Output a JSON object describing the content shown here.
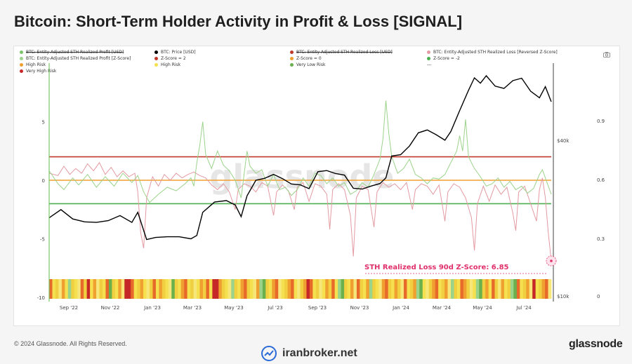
{
  "title": "Bitcoin: Short-Term Holder Activity in Profit & Loss [SIGNAL]",
  "footer": {
    "copyright": "© 2024 Glassnode. All Rights Reserved.",
    "brand": "glassnode",
    "site": "iranbroker.net"
  },
  "watermark": "glassnode",
  "annotation": "STH Realized Loss 90d Z-Score: 6.85",
  "legend": [
    {
      "label": "BTC: Entity-Adjusted STH Realized Profit [USD]",
      "color": "#7cc46a",
      "struck": true
    },
    {
      "label": "BTC: Price [USD]",
      "color": "#000000",
      "struck": false
    },
    {
      "label": "BTC: Entity-Adjusted STH Realized Loss [USD]",
      "color": "#c0392b",
      "struck": true
    },
    {
      "label": "BTC: Entity-Adjusted STH Realized Loss [Reversed Z-Score]",
      "color": "#e39aa2",
      "struck": false
    },
    {
      "label": "BTC: Entity-Adjusted STH Realized Profit [Z-Score]",
      "color": "#9cd38b",
      "struck": false
    },
    {
      "label": "Z-Score = 2",
      "color": "#c0392b",
      "struck": false
    },
    {
      "label": "Z-Score = 0",
      "color": "#f0a030",
      "struck": false
    },
    {
      "label": "Z-Score = -2",
      "color": "#4caf50",
      "struck": false
    },
    {
      "label": "High Risk",
      "color": "#f0a030",
      "struck": false
    },
    {
      "label": "High Risk",
      "color": "#f5e050",
      "struck": false
    },
    {
      "label": "Very Low Risk",
      "color": "#6ab04c",
      "struck": false
    },
    {
      "label": "---",
      "color": "",
      "struck": false
    },
    {
      "label": "Very High Risk",
      "color": "#c62828",
      "struck": false
    }
  ],
  "colors": {
    "price": "#000000",
    "profit_z": "#9cd38b",
    "loss_z": "#e39aa2",
    "z2": "#c0392b",
    "z0": "#f0a030",
    "zneg2": "#4caf50",
    "annotation": "#e0306a"
  },
  "chart_data": {
    "type": "line",
    "title": "Bitcoin: Short-Term Holder Activity in Profit & Loss [SIGNAL]",
    "x_ticks": [
      "Sep '22",
      "Nov '22",
      "Jan '23",
      "Mar '23",
      "May '23",
      "Jul '23",
      "Sep '23",
      "Nov '23",
      "Jan '24",
      "Mar '24",
      "May '24",
      "Jul '24"
    ],
    "y_left": {
      "ticks": [
        "5",
        "0",
        "-5",
        "-10"
      ],
      "range": [
        -10,
        10
      ]
    },
    "y_right_price": {
      "ticks": [
        "$40k",
        "$10k"
      ],
      "scale": "log"
    },
    "y_right_ratio": {
      "ticks": [
        "0.9",
        "0.6",
        "0.3",
        "0"
      ],
      "range": [
        0,
        1
      ]
    },
    "reference_lines": [
      {
        "name": "Z-Score = 2",
        "y": 2
      },
      {
        "name": "Z-Score = 0",
        "y": 0
      },
      {
        "name": "Z-Score = -2",
        "y": -2
      }
    ],
    "series": [
      {
        "name": "BTC: Price [USD]",
        "points": [
          [
            0,
            20000
          ],
          [
            4,
            21500
          ],
          [
            8,
            19800
          ],
          [
            12,
            19300
          ],
          [
            16,
            19200
          ],
          [
            20,
            19500
          ],
          [
            24,
            20400
          ],
          [
            28,
            19200
          ],
          [
            30,
            21000
          ],
          [
            33,
            16500
          ],
          [
            36,
            16800
          ],
          [
            40,
            16900
          ],
          [
            44,
            16900
          ],
          [
            48,
            16600
          ],
          [
            50,
            17100
          ],
          [
            52,
            21000
          ],
          [
            56,
            23000
          ],
          [
            60,
            23300
          ],
          [
            63,
            22400
          ],
          [
            65,
            20200
          ],
          [
            67,
            24300
          ],
          [
            70,
            27900
          ],
          [
            73,
            28400
          ],
          [
            76,
            29400
          ],
          [
            79,
            28300
          ],
          [
            82,
            27000
          ],
          [
            85,
            26800
          ],
          [
            88,
            25900
          ],
          [
            91,
            30100
          ],
          [
            94,
            30400
          ],
          [
            97,
            29600
          ],
          [
            100,
            29200
          ],
          [
            103,
            26000
          ],
          [
            106,
            25800
          ],
          [
            109,
            26500
          ],
          [
            112,
            27100
          ],
          [
            114,
            28500
          ],
          [
            116,
            34600
          ],
          [
            119,
            35000
          ],
          [
            122,
            37800
          ],
          [
            125,
            42500
          ],
          [
            128,
            43600
          ],
          [
            131,
            41800
          ],
          [
            134,
            39800
          ],
          [
            136,
            43000
          ],
          [
            139,
            51800
          ],
          [
            142,
            62000
          ],
          [
            144,
            69200
          ],
          [
            146,
            66000
          ],
          [
            148,
            70500
          ],
          [
            151,
            64300
          ],
          [
            154,
            63000
          ],
          [
            157,
            67500
          ],
          [
            160,
            69000
          ],
          [
            163,
            61500
          ],
          [
            166,
            58000
          ],
          [
            168,
            64000
          ],
          [
            170,
            56000
          ]
        ]
      },
      {
        "name": "BTC: Entity-Adjusted STH Realized Profit [Z-Score]",
        "points": [
          [
            0,
            0.8
          ],
          [
            3,
            -0.3
          ],
          [
            5,
            -0.8
          ],
          [
            8,
            0.2
          ],
          [
            10,
            -0.4
          ],
          [
            13,
            0.5
          ],
          [
            16,
            -0.6
          ],
          [
            19,
            0.3
          ],
          [
            22,
            -0.5
          ],
          [
            25,
            0.6
          ],
          [
            28,
            -0.2
          ],
          [
            30,
            0.4
          ],
          [
            32,
            -1.0
          ],
          [
            34,
            -1.9
          ],
          [
            37,
            -1.2
          ],
          [
            40,
            -0.6
          ],
          [
            43,
            -0.9
          ],
          [
            46,
            -0.3
          ],
          [
            48,
            0.2
          ],
          [
            49,
            -0.5
          ],
          [
            50,
            1.5
          ],
          [
            51,
            3.0
          ],
          [
            52,
            5.0
          ],
          [
            53,
            2.2
          ],
          [
            55,
            1.0
          ],
          [
            57,
            2.5
          ],
          [
            59,
            1.3
          ],
          [
            61,
            0.8
          ],
          [
            63,
            0.0
          ],
          [
            65,
            -1.5
          ],
          [
            66,
            0.5
          ],
          [
            67,
            2.5
          ],
          [
            68,
            1.2
          ],
          [
            70,
            0.6
          ],
          [
            72,
            0.9
          ],
          [
            74,
            -0.5
          ],
          [
            76,
            0.5
          ],
          [
            78,
            -0.8
          ],
          [
            80,
            -0.6
          ],
          [
            82,
            -1.3
          ],
          [
            84,
            -0.8
          ],
          [
            86,
            0.2
          ],
          [
            88,
            -0.5
          ],
          [
            90,
            0.6
          ],
          [
            92,
            0.4
          ],
          [
            94,
            -0.3
          ],
          [
            96,
            0.2
          ],
          [
            98,
            -0.5
          ],
          [
            100,
            -0.2
          ],
          [
            102,
            -1.2
          ],
          [
            104,
            -0.9
          ],
          [
            106,
            -0.2
          ],
          [
            108,
            -0.6
          ],
          [
            110,
            0.5
          ],
          [
            112,
            1.8
          ],
          [
            113,
            3.5
          ],
          [
            114,
            6.8
          ],
          [
            115,
            4.0
          ],
          [
            116,
            2.0
          ],
          [
            118,
            0.6
          ],
          [
            120,
            1.0
          ],
          [
            122,
            1.8
          ],
          [
            124,
            0.5
          ],
          [
            126,
            0.2
          ],
          [
            128,
            -0.3
          ],
          [
            130,
            0.2
          ],
          [
            132,
            0.1
          ],
          [
            134,
            0.5
          ],
          [
            136,
            1.5
          ],
          [
            138,
            2.5
          ],
          [
            139,
            3.8
          ],
          [
            140,
            2.5
          ],
          [
            141,
            5.2
          ],
          [
            142,
            2.0
          ],
          [
            144,
            1.0
          ],
          [
            146,
            0.3
          ],
          [
            148,
            -0.5
          ],
          [
            150,
            -0.3
          ],
          [
            152,
            0.2
          ],
          [
            154,
            -0.6
          ],
          [
            156,
            -0.1
          ],
          [
            158,
            -0.8
          ],
          [
            160,
            -0.5
          ],
          [
            162,
            -1.1
          ],
          [
            164,
            -0.7
          ],
          [
            166,
            0.5
          ],
          [
            167,
            0.9
          ],
          [
            168,
            0.2
          ],
          [
            169,
            -0.5
          ],
          [
            170,
            -1.2
          ]
        ]
      },
      {
        "name": "BTC: Entity-Adjusted STH Realized Loss [Reversed Z-Score]",
        "points": [
          [
            0,
            0.6
          ],
          [
            3,
            0.4
          ],
          [
            5,
            1.2
          ],
          [
            7,
            0.5
          ],
          [
            9,
            1.0
          ],
          [
            11,
            0.6
          ],
          [
            13,
            1.4
          ],
          [
            15,
            0.8
          ],
          [
            17,
            1.5
          ],
          [
            19,
            0.5
          ],
          [
            21,
            1.1
          ],
          [
            23,
            0.3
          ],
          [
            25,
            0.8
          ],
          [
            27,
            0.3
          ],
          [
            29,
            0.6
          ],
          [
            30,
            -1.0
          ],
          [
            31,
            -4.5
          ],
          [
            32,
            -5.8
          ],
          [
            33,
            -1.5
          ],
          [
            35,
            0.3
          ],
          [
            37,
            -0.5
          ],
          [
            39,
            0.5
          ],
          [
            41,
            0.0
          ],
          [
            43,
            0.6
          ],
          [
            45,
            0.2
          ],
          [
            47,
            0.5
          ],
          [
            49,
            0.7
          ],
          [
            51,
            0.4
          ],
          [
            53,
            0.2
          ],
          [
            55,
            -0.4
          ],
          [
            57,
            -0.8
          ],
          [
            59,
            -0.3
          ],
          [
            61,
            -1.0
          ],
          [
            63,
            -2.5
          ],
          [
            64,
            -0.8
          ],
          [
            66,
            -0.3
          ],
          [
            68,
            -0.5
          ],
          [
            70,
            -1.0
          ],
          [
            72,
            -0.2
          ],
          [
            74,
            -0.5
          ],
          [
            76,
            -3.0
          ],
          [
            77,
            -1.0
          ],
          [
            79,
            -0.4
          ],
          [
            81,
            -0.9
          ],
          [
            83,
            -2.5
          ],
          [
            84,
            -0.6
          ],
          [
            86,
            -0.2
          ],
          [
            88,
            -1.8
          ],
          [
            90,
            -0.3
          ],
          [
            92,
            -0.5
          ],
          [
            94,
            -1.2
          ],
          [
            95,
            -4.2
          ],
          [
            96,
            -0.8
          ],
          [
            98,
            -0.3
          ],
          [
            100,
            -0.8
          ],
          [
            102,
            -3.0
          ],
          [
            103,
            -6.5
          ],
          [
            104,
            -1.5
          ],
          [
            106,
            -0.5
          ],
          [
            108,
            -0.8
          ],
          [
            110,
            -4.0
          ],
          [
            111,
            -1.0
          ],
          [
            113,
            -0.2
          ],
          [
            115,
            -0.6
          ],
          [
            117,
            -0.3
          ],
          [
            119,
            -0.8
          ],
          [
            121,
            -0.2
          ],
          [
            123,
            -2.5
          ],
          [
            124,
            -0.8
          ],
          [
            126,
            -0.3
          ],
          [
            128,
            -0.5
          ],
          [
            130,
            -1.2
          ],
          [
            132,
            -0.4
          ],
          [
            134,
            -3.5
          ],
          [
            135,
            -1.0
          ],
          [
            137,
            -0.3
          ],
          [
            139,
            -0.6
          ],
          [
            141,
            -1.5
          ],
          [
            143,
            -3.2
          ],
          [
            144,
            -6.0
          ],
          [
            145,
            -2.0
          ],
          [
            147,
            -0.5
          ],
          [
            149,
            -1.8
          ],
          [
            151,
            -0.4
          ],
          [
            153,
            -1.2
          ],
          [
            155,
            -0.6
          ],
          [
            157,
            -2.8
          ],
          [
            158,
            -4.3
          ],
          [
            159,
            -1.0
          ],
          [
            161,
            -0.5
          ],
          [
            163,
            -2.0
          ],
          [
            165,
            -3.5
          ],
          [
            166,
            -0.8
          ],
          [
            167,
            0.2
          ],
          [
            168,
            -1.5
          ],
          [
            169,
            -4.5
          ],
          [
            170,
            -6.85
          ]
        ]
      }
    ],
    "risk_band": {
      "levels": [
        "Very High Risk",
        "High Risk",
        "High Risk",
        "Very Low Risk"
      ],
      "description": "Heatmap strip of risk regimes along the bottom of the chart"
    }
  }
}
